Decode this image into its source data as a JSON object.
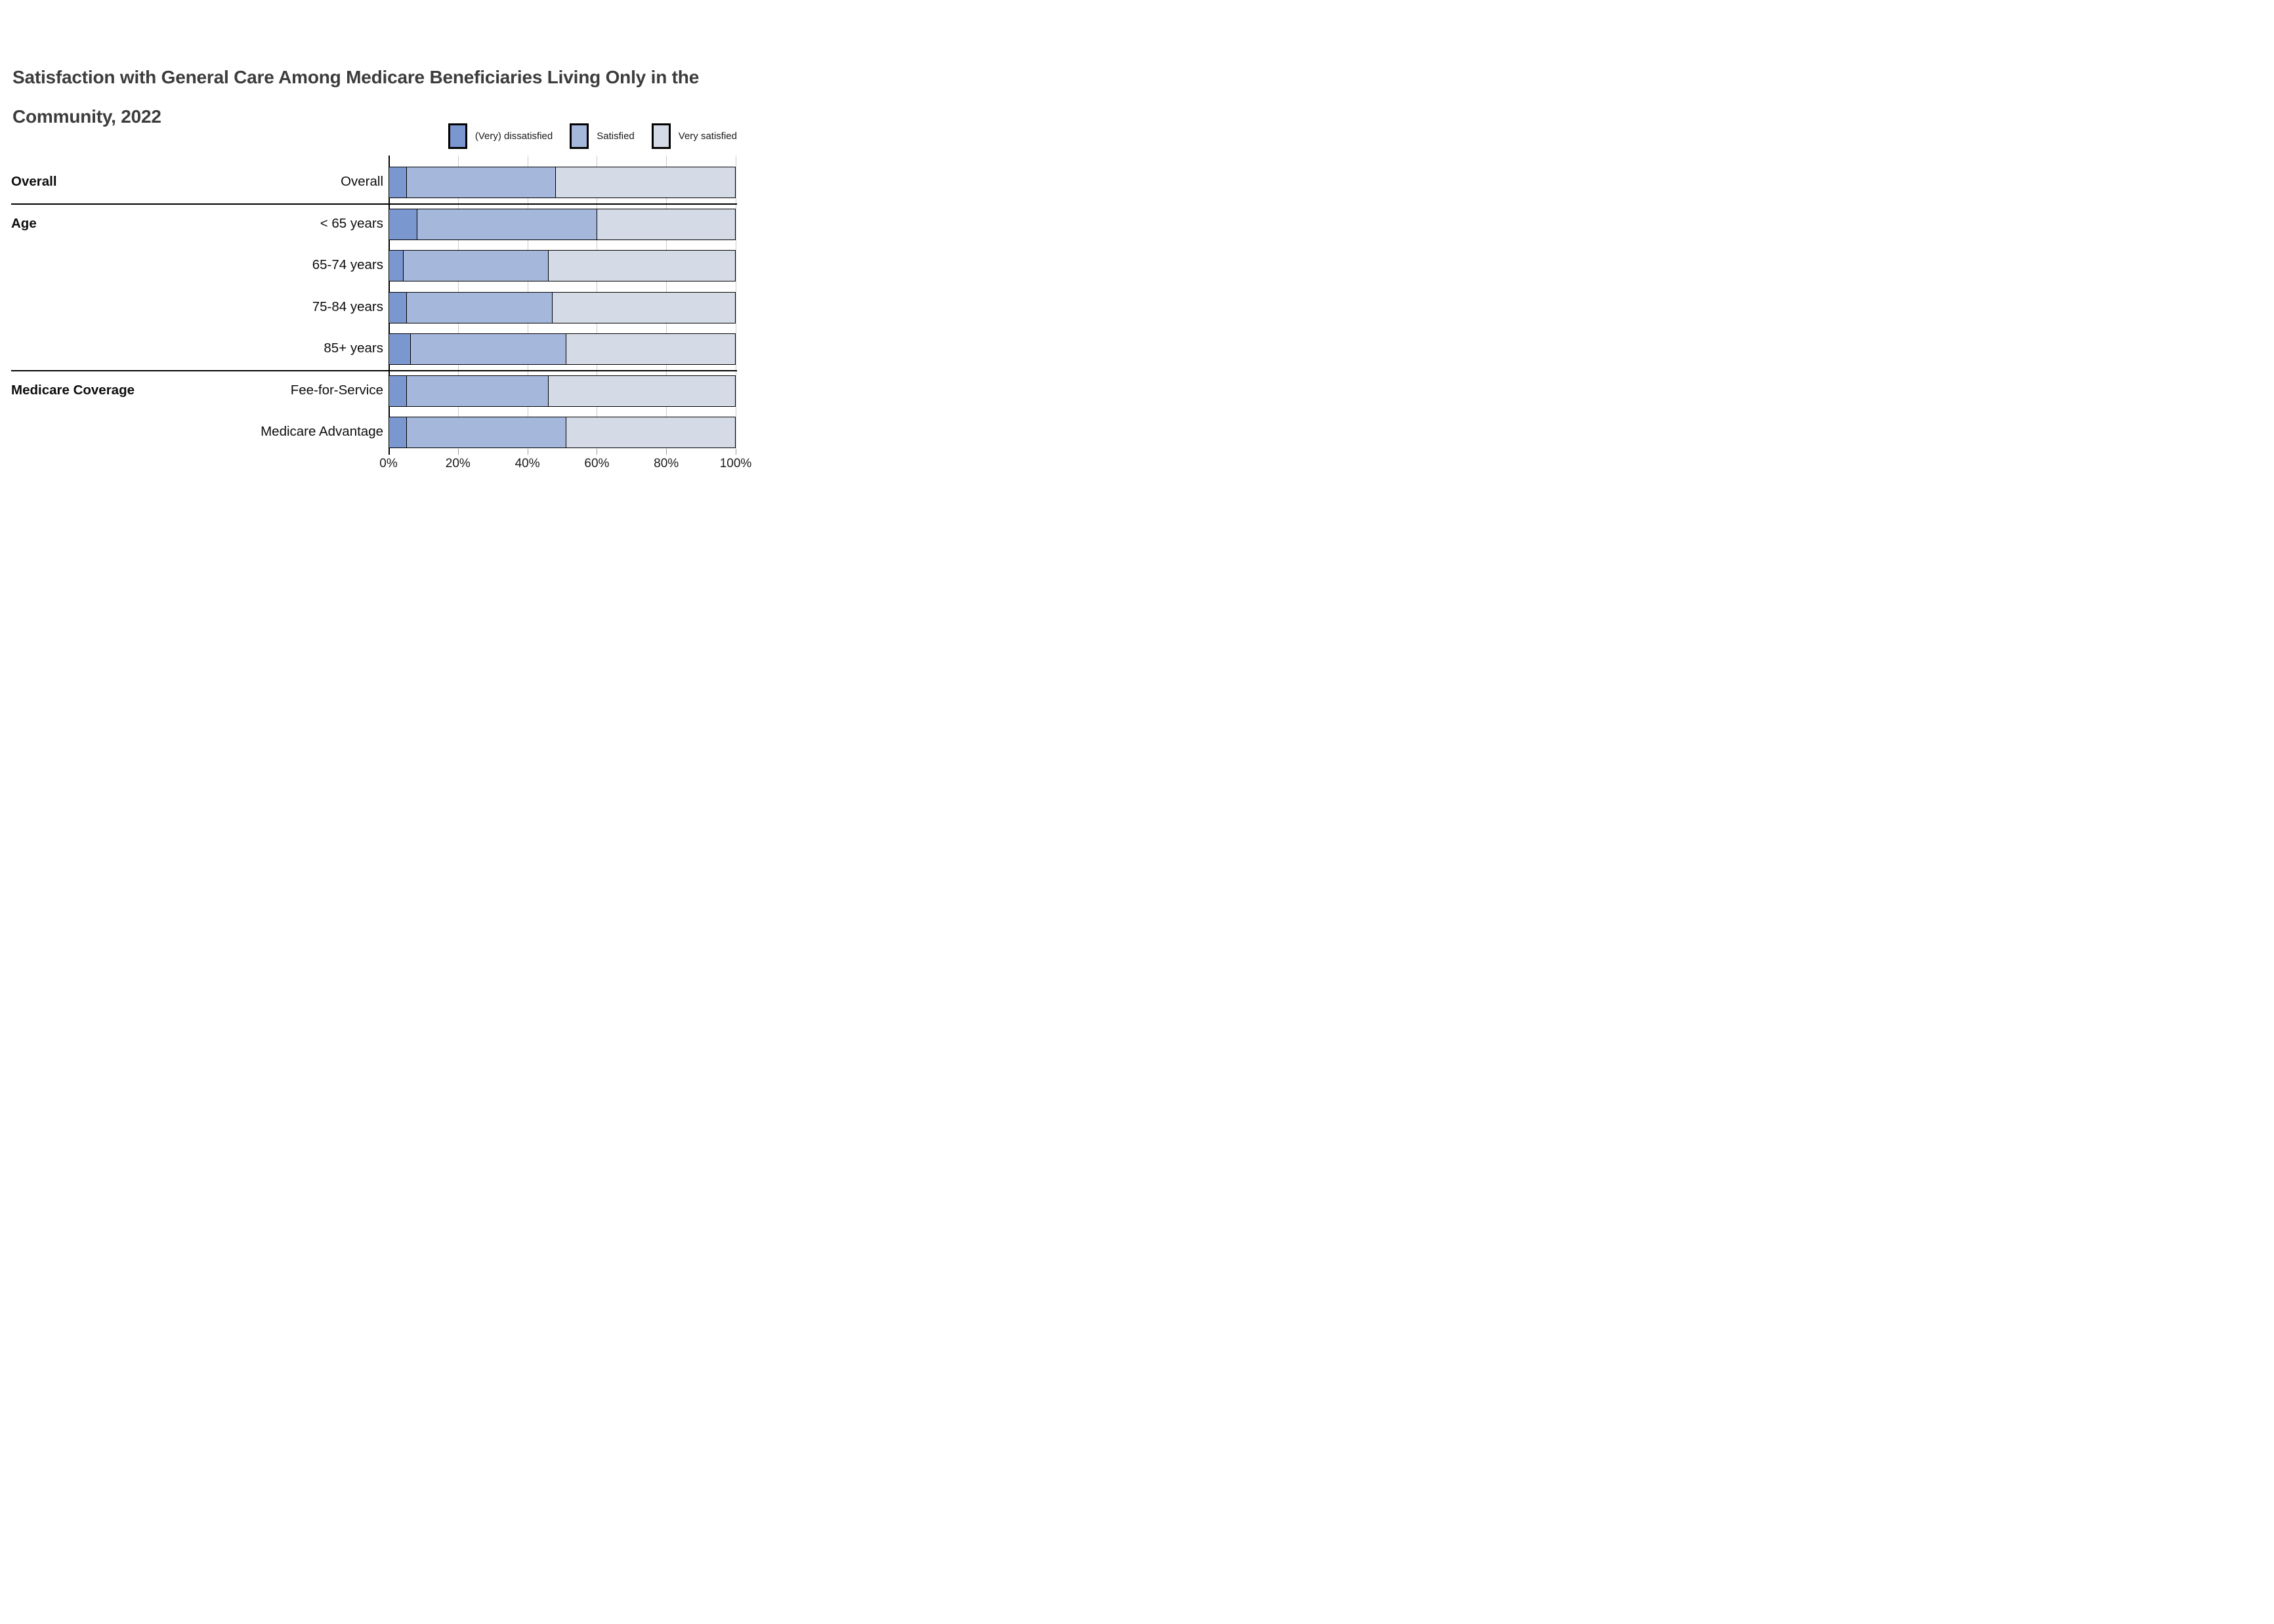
{
  "title_lines": [
    "Satisfaction with General Care Among Medicare Beneficiaries Living Only in the",
    "Community, 2022"
  ],
  "chart_data": {
    "type": "bar",
    "orientation": "horizontal",
    "stacked": true,
    "title": "Satisfaction with General Care Among Medicare Beneficiaries Living Only in the Community, 2022",
    "categories": [
      "Overall",
      "< 65 years",
      "65-74 years",
      "75-84 years",
      "85+ years",
      "Fee-for-Service",
      "Medicare Advantage"
    ],
    "row_groups": [
      {
        "label": "Overall",
        "rows": [
          0
        ]
      },
      {
        "label": "Age",
        "rows": [
          1,
          2,
          3,
          4
        ]
      },
      {
        "label": "Medicare Coverage",
        "rows": [
          5,
          6
        ]
      }
    ],
    "series": [
      {
        "name": "(Very) dissatisfied",
        "color": "#7b97d0",
        "values": [
          5,
          8,
          4,
          5,
          6,
          5,
          5
        ]
      },
      {
        "name": "Satisfied",
        "color": "#a5b8dc",
        "values": [
          43,
          52,
          42,
          42,
          45,
          41,
          46
        ]
      },
      {
        "name": "Very satisfied",
        "color": "#d4dae6",
        "values": [
          52,
          40,
          54,
          53,
          49,
          54,
          49
        ]
      }
    ],
    "x_ticks": [
      "0%",
      "20%",
      "40%",
      "60%",
      "80%",
      "100%"
    ],
    "x_range": [
      0,
      100
    ],
    "values_unit": "percent",
    "grid": true,
    "legend_position": "top-right"
  }
}
